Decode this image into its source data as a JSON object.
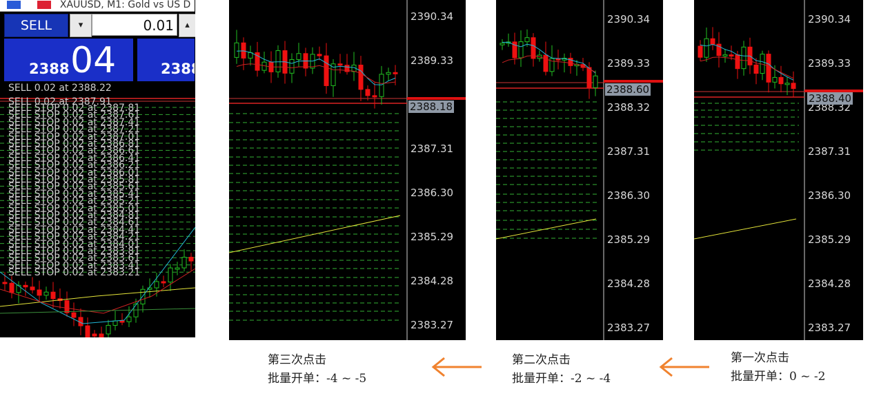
{
  "mt": {
    "window_title": "XAUUSD, M1:  Gold vs US D",
    "sell_label": "SELL",
    "dropdown": "▾",
    "lot_value": "0.01",
    "up": "▴",
    "bid_prefix": "2388",
    "bid_big": "04",
    "bid2_prefix": "2388",
    "sell_position": "SELL 0.02 at 2388.22",
    "sell_position2": "SELL 0.02 at 2387.91",
    "stop_orders": [
      "SELL STOP 0.02 at 2387.81",
      "SELL STOP 0.02 at 2387.61",
      "SELL STOP 0.02 at 2387.41",
      "SELL STOP 0.02 at 2387.21",
      "SELL STOP 0.02 at 2387.01",
      "SELL STOP 0.02 at 2386.81",
      "SELL STOP 0.02 at 2386.61",
      "SELL STOP 0.02 at 2386.41",
      "SELL STOP 0.02 at 2386.21",
      "SELL STOP 0.02 at 2386.01",
      "SELL STOP 0.02 at 2385.81",
      "SELL STOP 0.02 at 2385.61",
      "SELL STOP 0.02 at 2385.41",
      "SELL STOP 0.02 at 2385.21",
      "SELL STOP 0.02 at 2385.01",
      "SELL STOP 0.02 at 2384.81",
      "SELL STOP 0.02 at 2384.61",
      "SELL STOP 0.02 at 2384.41",
      "SELL STOP 0.02 at 2384.21",
      "SELL STOP 0.02 at 2384.01",
      "SELL STOP 0.02 at 2383.81",
      "SELL STOP 0.02 at 2383.61",
      "SELL STOP 0.02 at 2383.41",
      "SELL STOP 0.02 at 2383.21"
    ]
  },
  "axis_ticks": [
    "2390.34",
    "2389.33",
    "2388.32",
    "2387.31",
    "2386.30",
    "2385.29",
    "2384.28",
    "2383.27"
  ],
  "charts": [
    {
      "id": "third",
      "price_tag": "2388.18"
    },
    {
      "id": "second",
      "price_tag": "2388.60"
    },
    {
      "id": "first",
      "price_tag": "2388.40"
    }
  ],
  "captions": {
    "third": {
      "line1": "第三次点击",
      "line2": "批量开单：-4 ~ -5"
    },
    "second": {
      "line1": "第二次点击",
      "line2": "批量开单：-2 ~ -4"
    },
    "first": {
      "line1": "第一次点击",
      "line2": "批量开单：0 ~ -2"
    }
  },
  "colors": {
    "bull": "#22c022",
    "bear": "#ee1111",
    "ma_fast": "#22b8d8",
    "ma_slow": "#cc2222",
    "ma_long": "#e6e63a",
    "order_line": "#3fd23f",
    "arrow": "#f0822e"
  }
}
